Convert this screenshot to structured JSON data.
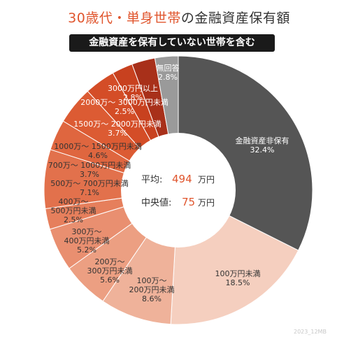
{
  "title": {
    "accent": "30歳代・単身世帯",
    "rest": "の金融資産保有額"
  },
  "subtitle": "金融資産を保有していない世帯を含む",
  "center": {
    "avg_label": "平均:",
    "avg_value": "494",
    "avg_unit": "万円",
    "median_label": "中央値:",
    "median_value": "75",
    "median_unit": "万円"
  },
  "credit": "2023_12MB",
  "colors": {
    "accent": "#e0552d",
    "dark": "#555555"
  },
  "chart_data": {
    "type": "pie",
    "variant": "donut",
    "start": "top, clockwise",
    "slices": [
      {
        "label": "金融資産非保有",
        "value": 32.4,
        "value_label": "32.4%",
        "color": "#555555",
        "text_color": "#ffffff"
      },
      {
        "label": "100万円未満",
        "value": 18.5,
        "value_label": "18.5%",
        "color": "#f5cfbf",
        "text_color": "#333333"
      },
      {
        "label": "100万～\n200万円未満",
        "value": 8.6,
        "value_label": "8.6%",
        "color": "#efb29a",
        "text_color": "#333333"
      },
      {
        "label": "200万～\n300万円未満",
        "value": 5.6,
        "value_label": "5.6%",
        "color": "#ec9f82",
        "text_color": "#333333"
      },
      {
        "label": "300万～\n400万円未満",
        "value": 5.2,
        "value_label": "5.2%",
        "color": "#e98f70",
        "text_color": "#333333"
      },
      {
        "label": "400万～\n500万円未満",
        "value": 2.5,
        "value_label": "2.5%",
        "color": "#e67f5c",
        "text_color": "#333333"
      },
      {
        "label": "500万～ 700万円未満",
        "value": 7.1,
        "value_label": "7.1%",
        "color": "#e2714c",
        "text_color": "#333333"
      },
      {
        "label": "700万～ 1000万円未満",
        "value": 3.7,
        "value_label": "3.7%",
        "color": "#df663f",
        "text_color": "#333333"
      },
      {
        "label": "1000万～ 1500万円未満",
        "value": 4.6,
        "value_label": "4.6%",
        "color": "#dc5b33",
        "text_color": "#333333"
      },
      {
        "label": "1500万～ 2000万円未満",
        "value": 3.7,
        "value_label": "3.7%",
        "color": "#d44d27",
        "text_color": "#ffffff"
      },
      {
        "label": "2000万～ 3000万円未満",
        "value": 2.5,
        "value_label": "2.5%",
        "color": "#c8411f",
        "text_color": "#ffffff"
      },
      {
        "label": "3000万円以上",
        "value": 2.8,
        "value_label": "2.8%",
        "color": "#a8301a",
        "text_color": "#ffffff"
      },
      {
        "label": "無回答",
        "value": 2.8,
        "value_label": "2.8%",
        "color": "#9a9a9a",
        "text_color": "#ffffff"
      }
    ]
  }
}
